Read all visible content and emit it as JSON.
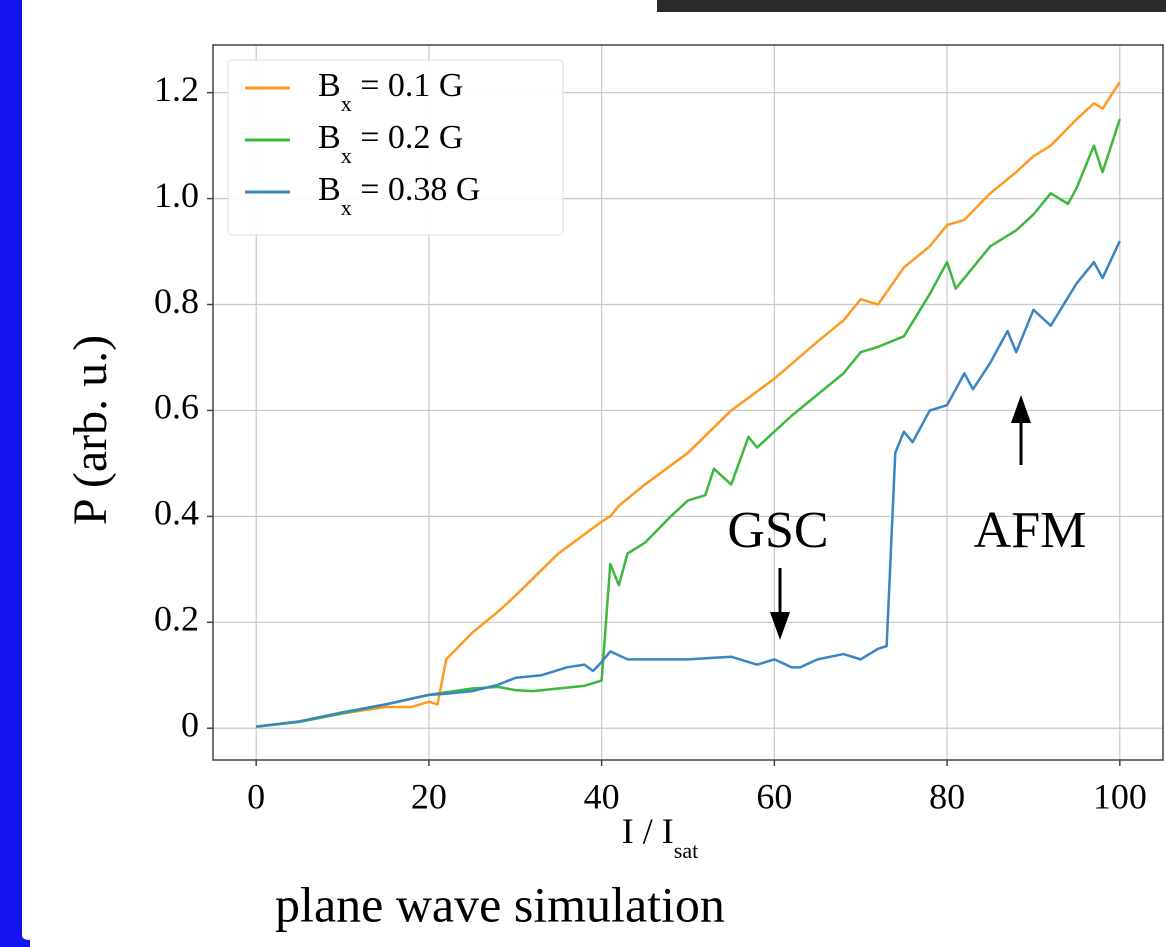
{
  "chart_data": {
    "type": "line",
    "title": "plane wave simulation",
    "x_label": "I / Isat",
    "y_label": "P (arb. u.)",
    "xlim": [
      -5,
      105
    ],
    "ylim": [
      -0.06,
      1.29
    ],
    "xticks": [
      0,
      20,
      40,
      60,
      80,
      100
    ],
    "yticks": [
      0,
      0.2,
      0.4,
      0.6,
      0.8,
      {
        "value": 1,
        "label": "1.0"
      },
      1.2
    ],
    "grid": true,
    "legend": "upper-left",
    "annotations": [
      "GSC",
      "AFM"
    ],
    "series": [
      {
        "name": "Bx = 0.1 G",
        "color": "#ff9a1f",
        "x": [
          0,
          5,
          10,
          15,
          18,
          20,
          21,
          22,
          25,
          28,
          30,
          35,
          40,
          41,
          42,
          45,
          50,
          55,
          60,
          65,
          68,
          70,
          72,
          75,
          78,
          80,
          82,
          85,
          88,
          90,
          92,
          95,
          97,
          98,
          100
        ],
        "values": [
          0.003,
          0.012,
          0.028,
          0.04,
          0.04,
          0.05,
          0.045,
          0.13,
          0.18,
          0.22,
          0.25,
          0.33,
          0.39,
          0.4,
          0.42,
          0.46,
          0.52,
          0.6,
          0.66,
          0.73,
          0.77,
          0.81,
          0.8,
          0.87,
          0.91,
          0.95,
          0.96,
          1.01,
          1.05,
          1.08,
          1.1,
          1.15,
          1.18,
          1.17,
          1.22
        ]
      },
      {
        "name": "Bx = 0.2 G",
        "color": "#3cb83c",
        "x": [
          0,
          5,
          10,
          15,
          20,
          22,
          25,
          28,
          30,
          32,
          35,
          38,
          40,
          41,
          42,
          43,
          45,
          48,
          50,
          52,
          53,
          55,
          57,
          58,
          60,
          62,
          65,
          68,
          70,
          72,
          75,
          78,
          80,
          81,
          83,
          85,
          88,
          90,
          92,
          94,
          95,
          96,
          97,
          98,
          100
        ],
        "values": [
          0.003,
          0.012,
          0.028,
          0.045,
          0.063,
          0.068,
          0.075,
          0.078,
          0.072,
          0.07,
          0.075,
          0.08,
          0.09,
          0.31,
          0.27,
          0.33,
          0.35,
          0.4,
          0.43,
          0.44,
          0.49,
          0.46,
          0.55,
          0.53,
          0.56,
          0.59,
          0.63,
          0.67,
          0.71,
          0.72,
          0.74,
          0.82,
          0.88,
          0.83,
          0.87,
          0.91,
          0.94,
          0.97,
          1.01,
          0.99,
          1.02,
          1.06,
          1.1,
          1.05,
          1.15
        ]
      },
      {
        "name": "Bx = 0.38 G",
        "color": "#3a85c2",
        "x": [
          0,
          5,
          10,
          15,
          20,
          22,
          25,
          28,
          30,
          33,
          36,
          38,
          39,
          40,
          41,
          43,
          45,
          50,
          55,
          58,
          60,
          62,
          63,
          65,
          68,
          70,
          72,
          73,
          74,
          75,
          76,
          78,
          80,
          82,
          83,
          85,
          87,
          88,
          90,
          92,
          95,
          97,
          98,
          100
        ],
        "values": [
          0.003,
          0.013,
          0.03,
          0.045,
          0.063,
          0.065,
          0.07,
          0.082,
          0.095,
          0.1,
          0.115,
          0.12,
          0.108,
          0.125,
          0.145,
          0.13,
          0.13,
          0.13,
          0.135,
          0.12,
          0.13,
          0.115,
          0.115,
          0.13,
          0.14,
          0.13,
          0.15,
          0.155,
          0.52,
          0.56,
          0.54,
          0.6,
          0.61,
          0.67,
          0.64,
          0.69,
          0.75,
          0.71,
          0.79,
          0.76,
          0.84,
          0.88,
          0.85,
          0.92
        ]
      }
    ]
  }
}
